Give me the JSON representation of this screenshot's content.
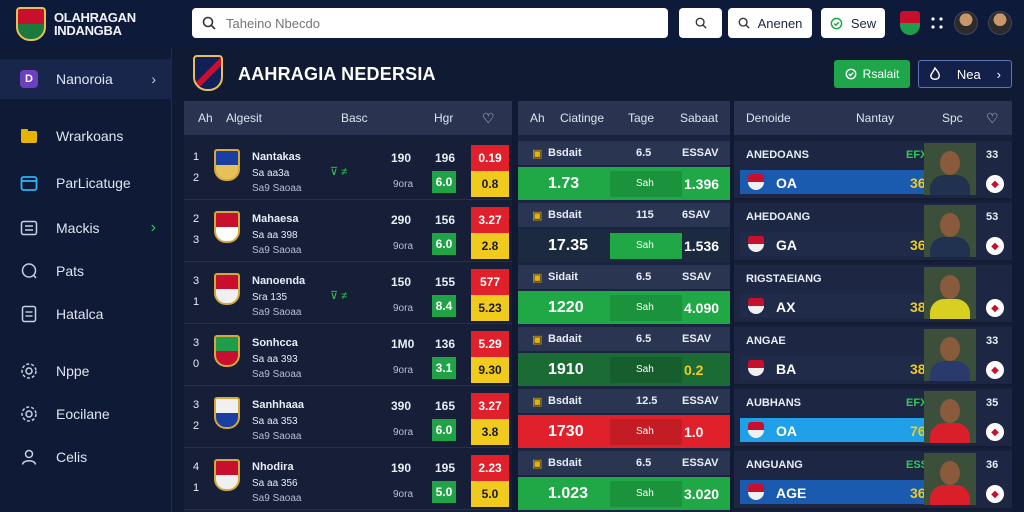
{
  "brand": {
    "line1": "OLAHRAGAN",
    "line2": "INDANGBA"
  },
  "search": {
    "placeholder": "Taheino Nbecdo"
  },
  "topbar": {
    "search_btn_icon": "search-icon",
    "alt_search_label": "Anenen",
    "settings_label": "Sew"
  },
  "sidebar": {
    "items": [
      {
        "label": "Nanoroia",
        "icon": "D",
        "chevron": "›"
      },
      {
        "label": "Wrarkoans",
        "icon": "folder"
      },
      {
        "label": "ParLicatuge",
        "icon": "calendar"
      },
      {
        "label": "Mackis",
        "icon": "sliders",
        "chevron": "›"
      },
      {
        "label": "Pats",
        "icon": "chat"
      },
      {
        "label": "Hatalca",
        "icon": "document"
      },
      {
        "label": "Nppe",
        "icon": "gear"
      },
      {
        "label": "Eocilane",
        "icon": "gear"
      },
      {
        "label": "Celis",
        "icon": "user"
      }
    ]
  },
  "page": {
    "title": "AAHRAGIA NEDERSIA",
    "green_btn": "Rsalait",
    "dark_btn": "Nea",
    "dark_btn_chevron": "›"
  },
  "matches_panel": {
    "headers": [
      "Ah",
      "Algesit",
      "Basc",
      "Hgr",
      "♡"
    ],
    "rows": [
      {
        "n1": "1",
        "n2": "2",
        "name": "Nantakas",
        "sub1": "Sa aa3a",
        "sub2": "Sa9 Saoaa",
        "v1": "190",
        "v1b": "9ora",
        "v2": "196",
        "o1": "0.19",
        "o2": "6.0",
        "o3": "0.8",
        "icons": "⊽ ≠"
      },
      {
        "n1": "2",
        "n2": "3",
        "name": "Mahaesa",
        "sub1": "Sa aa 398",
        "sub2": "Sa9 Saoaa",
        "v1": "290",
        "v1b": "9ora",
        "v2": "156",
        "o1": "3.27",
        "o2": "6.0",
        "o3": "2.8",
        "icons": ""
      },
      {
        "n1": "3",
        "n2": "1",
        "name": "Nanoenda",
        "sub1": "Sra 135",
        "sub2": "Sa9 Saoaa",
        "v1": "150",
        "v1b": "9ora",
        "v2": "155",
        "o1": "577",
        "o2": "8.4",
        "o3": "5.23",
        "icons": "⊽ ≠"
      },
      {
        "n1": "3",
        "n2": "0",
        "name": "Sonhcca",
        "sub1": "Sa aa 393",
        "sub2": "Sa9 Saoaa",
        "v1": "1M0",
        "v1b": "9ora",
        "v2": "136",
        "o1": "5.29",
        "o2": "3.1",
        "o3": "9.30",
        "icons": ""
      },
      {
        "n1": "3",
        "n2": "2",
        "name": "Sanhhaaa",
        "sub1": "Sa aa 353",
        "sub2": "Sa9 Saoaa",
        "v1": "390",
        "v1b": "9ora",
        "v2": "165",
        "o1": "3.27",
        "o2": "6.0",
        "o3": "3.8",
        "icons": ""
      },
      {
        "n1": "4",
        "n2": "1",
        "name": "Nhodira",
        "sub1": "Sa aa 356",
        "sub2": "Sa9 Saoaa",
        "v1": "190",
        "v1b": "9ora",
        "v2": "195",
        "o1": "2.23",
        "o2": "5.0",
        "o3": "5.0",
        "icons": ""
      }
    ]
  },
  "live_panel": {
    "headers": [
      "Ah",
      "Ciatinge",
      "Tage",
      "Sabaat"
    ],
    "rows": [
      {
        "label": "Bsdait",
        "t1": "6.5",
        "t2": "ESSAV",
        "score": "1.73",
        "mid": "Sah",
        "val": "1.396",
        "color": "#1fa845"
      },
      {
        "label": "Bsdait",
        "t1": "115",
        "t2": "6SAV",
        "score": "17.35",
        "mid": "Sah",
        "val": "1.536",
        "color": "#1c2a3f"
      },
      {
        "label": "Sidait",
        "t1": "6.5",
        "t2": "SSAV",
        "score": "1220",
        "mid": "Sah",
        "val": "4.090",
        "color": "#1fa845"
      },
      {
        "label": "Badait",
        "t1": "6.5",
        "t2": "ESAV",
        "score": "1910",
        "mid": "Sah",
        "val": "0.2",
        "color": "#1a6b34"
      },
      {
        "label": "Bsdait",
        "t1": "12.5",
        "t2": "ESSAV",
        "score": "1730",
        "mid": "Sah",
        "val": "1.0",
        "color": "#e0202b"
      },
      {
        "label": "Bsdait",
        "t1": "6.5",
        "t2": "ESSAV",
        "score": "1.023",
        "mid": "Sah",
        "val": "3.020",
        "color": "#1fa845"
      }
    ]
  },
  "players_panel": {
    "headers": [
      "Denoide",
      "Nantay",
      "Spc",
      "♡"
    ],
    "rows": [
      {
        "name": "ANEDOANS",
        "tag": "EFX",
        "num": "33",
        "code": "OA",
        "score": "36",
        "bar": "#1a5bb0"
      },
      {
        "name": "AHEDOANG",
        "tag": "",
        "num": "53",
        "code": "GA",
        "score": "36",
        "bar": "#1f2b48"
      },
      {
        "name": "RIGSTAEIANG",
        "tag": "",
        "num": "",
        "code": "AX",
        "score": "38",
        "bar": "#1f2b48"
      },
      {
        "name": "ANGAE",
        "tag": "",
        "num": "33",
        "code": "BA",
        "score": "38",
        "bar": "#1f2b48"
      },
      {
        "name": "AUBHANS",
        "tag": "EFX",
        "num": "35",
        "code": "OA",
        "score": "76",
        "bar": "#1fa0e8"
      },
      {
        "name": "ANGUANG",
        "tag": "ESS",
        "num": "36",
        "code": "AGE",
        "score": "36",
        "bar": "#1a5bb0"
      }
    ]
  }
}
